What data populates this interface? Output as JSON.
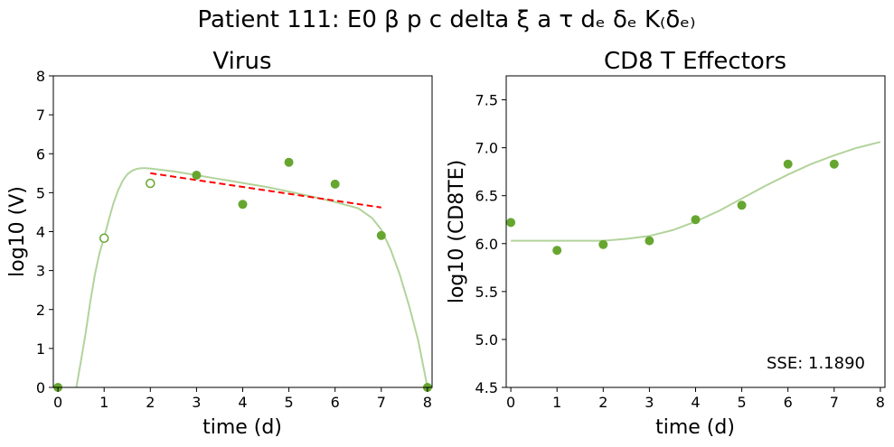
{
  "figure": {
    "suptitle": "Patient 111: E0 β p c delta ξ a τ dₑ δₑ K₍δₑ₎"
  },
  "chart_data": [
    {
      "type": "scatter",
      "title": "Virus",
      "xlabel": "time (d)",
      "ylabel": "log10 (V)",
      "xlim": [
        -0.1,
        8.1
      ],
      "ylim": [
        0,
        8
      ],
      "xticks": [
        0,
        1,
        2,
        3,
        4,
        5,
        6,
        7,
        8
      ],
      "yticks": [
        0,
        1,
        2,
        3,
        4,
        5,
        6,
        7,
        8
      ],
      "grid": false,
      "colors": {
        "points": "#66a630",
        "fit": "#b2d39b",
        "trend": "#ff0000"
      },
      "series": [
        {
          "kind": "points-filled",
          "x": [
            0,
            3,
            4,
            5,
            6,
            7,
            8
          ],
          "y": [
            0,
            5.45,
            4.7,
            5.78,
            5.22,
            3.9,
            0
          ]
        },
        {
          "kind": "points-open",
          "x": [
            1,
            2
          ],
          "y": [
            3.83,
            5.24
          ]
        },
        {
          "kind": "fit-line",
          "x": [
            0,
            0.2,
            0.4,
            0.5,
            0.6,
            0.7,
            0.8,
            0.9,
            1.0,
            1.1,
            1.2,
            1.3,
            1.4,
            1.5,
            1.6,
            1.7,
            1.8,
            1.9,
            2.0,
            2.5,
            3.0,
            3.5,
            4.0,
            4.5,
            5.0,
            5.5,
            6.0,
            6.5,
            6.8,
            7.0,
            7.2,
            7.4,
            7.6,
            7.8,
            7.9,
            8.0
          ],
          "y": [
            -0.5,
            -0.3,
            0.0,
            0.7,
            1.4,
            2.2,
            2.9,
            3.45,
            3.85,
            4.3,
            4.72,
            5.05,
            5.3,
            5.47,
            5.56,
            5.61,
            5.63,
            5.63,
            5.62,
            5.55,
            5.45,
            5.35,
            5.25,
            5.15,
            5.03,
            4.9,
            4.76,
            4.6,
            4.35,
            4.05,
            3.55,
            2.9,
            2.1,
            1.2,
            0.6,
            0.0
          ]
        },
        {
          "kind": "trend-dashed",
          "x": [
            2,
            7
          ],
          "y": [
            5.5,
            4.62
          ]
        }
      ]
    },
    {
      "type": "scatter",
      "title": "CD8 T Effectors",
      "xlabel": "time (d)",
      "ylabel": "log10 (CD8TE)",
      "xlim": [
        -0.1,
        8.1
      ],
      "ylim": [
        4.5,
        7.75
      ],
      "xticks": [
        0,
        1,
        2,
        3,
        4,
        5,
        6,
        7,
        8
      ],
      "yticks": [
        4.5,
        5.0,
        5.5,
        6.0,
        6.5,
        7.0,
        7.5
      ],
      "grid": false,
      "annotation": "SSE: 1.1890",
      "colors": {
        "points": "#66a630",
        "fit": "#b2d39b"
      },
      "series": [
        {
          "kind": "points-filled",
          "x": [
            0,
            1,
            2,
            3,
            4,
            5,
            6,
            7
          ],
          "y": [
            6.22,
            5.93,
            5.99,
            6.03,
            6.25,
            6.4,
            6.83,
            6.83
          ]
        },
        {
          "kind": "fit-line",
          "x": [
            0,
            1,
            2,
            2.5,
            3,
            3.5,
            4,
            4.5,
            5,
            5.5,
            6,
            6.5,
            7,
            7.5,
            8
          ],
          "y": [
            6.03,
            6.03,
            6.03,
            6.05,
            6.08,
            6.14,
            6.23,
            6.34,
            6.47,
            6.6,
            6.72,
            6.83,
            6.92,
            7.0,
            7.06
          ]
        }
      ]
    }
  ]
}
